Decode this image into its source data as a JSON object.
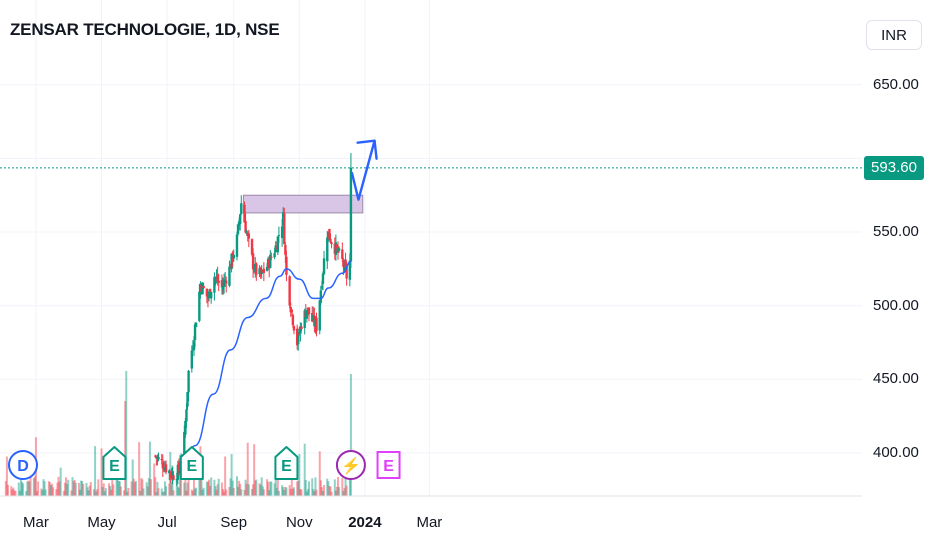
{
  "header": {
    "title": "ZENSAR TECHNOLOGIE, 1D, NSE",
    "currency": "INR"
  },
  "last_price": {
    "label": "593.60",
    "value": 593.6,
    "color": "#089981"
  },
  "events": [
    {
      "letter": "D",
      "type": "dividend",
      "color": "#2962ff"
    },
    {
      "letter": "E",
      "type": "earnings",
      "color": "#089981"
    },
    {
      "letter": "E",
      "type": "earnings",
      "color": "#089981"
    },
    {
      "letter": "E",
      "type": "earnings",
      "color": "#089981"
    },
    {
      "letter": "⚡",
      "type": "flash",
      "color": "#9c27b0"
    },
    {
      "letter": "E",
      "type": "earnings-upcoming",
      "color": "#e040fb"
    }
  ],
  "chart_data": {
    "type": "candlestick",
    "ylim": [
      378,
      665
    ],
    "ytick_values": [
      400,
      450,
      500,
      550,
      600,
      650
    ],
    "ytick_labels": [
      "400.00",
      "450.00",
      "500.00",
      "550.00",
      "650.00"
    ],
    "xtick_labels": [
      "Mar",
      "May",
      "Jul",
      "Sep",
      "Nov",
      "2024",
      "Mar"
    ],
    "colors": {
      "up": "#089981",
      "down": "#f23645",
      "ma": "#2962ff",
      "zone": "#d9c6e6",
      "zone_border": "#9a8aa8"
    },
    "resistance_zone": {
      "low": 563,
      "high": 575
    },
    "price_path": [
      [
        "2023-06-20",
        398
      ],
      [
        "2023-06-28",
        392
      ],
      [
        "2023-07-06",
        385
      ],
      [
        "2023-07-12",
        388
      ],
      [
        "2023-07-17",
        410
      ],
      [
        "2023-07-21",
        455
      ],
      [
        "2023-07-26",
        480
      ],
      [
        "2023-08-01",
        515
      ],
      [
        "2023-08-08",
        505
      ],
      [
        "2023-08-14",
        520
      ],
      [
        "2023-08-21",
        512
      ],
      [
        "2023-08-28",
        525
      ],
      [
        "2023-09-04",
        545
      ],
      [
        "2023-09-08",
        570
      ],
      [
        "2023-09-14",
        545
      ],
      [
        "2023-09-20",
        525
      ],
      [
        "2023-09-26",
        520
      ],
      [
        "2023-10-03",
        528
      ],
      [
        "2023-10-10",
        540
      ],
      [
        "2023-10-17",
        560
      ],
      [
        "2023-10-20",
        520
      ],
      [
        "2023-10-25",
        495
      ],
      [
        "2023-10-30",
        475
      ],
      [
        "2023-11-03",
        488
      ],
      [
        "2023-11-08",
        498
      ],
      [
        "2023-11-13",
        490
      ],
      [
        "2023-11-17",
        486
      ],
      [
        "2023-11-22",
        518
      ],
      [
        "2023-11-27",
        550
      ],
      [
        "2023-12-04",
        540
      ],
      [
        "2023-12-11",
        530
      ],
      [
        "2023-12-15",
        520
      ],
      [
        "2023-12-18",
        530
      ],
      [
        "2023-12-19",
        593.6
      ]
    ],
    "moving_average": [
      [
        "2023-07-14",
        383
      ],
      [
        "2023-07-27",
        405
      ],
      [
        "2023-08-13",
        440
      ],
      [
        "2023-08-29",
        470
      ],
      [
        "2023-09-14",
        492
      ],
      [
        "2023-10-01",
        505
      ],
      [
        "2023-10-14",
        520
      ],
      [
        "2023-10-20",
        525
      ],
      [
        "2023-11-01",
        518
      ],
      [
        "2023-11-14",
        505
      ],
      [
        "2023-11-21",
        505
      ],
      [
        "2023-11-28",
        512
      ],
      [
        "2023-12-11",
        522
      ],
      [
        "2023-12-19",
        530
      ]
    ],
    "projection": [
      [
        "2023-12-20",
        590
      ],
      [
        "2023-12-26",
        572
      ],
      [
        "2024-01-10",
        612
      ]
    ]
  }
}
